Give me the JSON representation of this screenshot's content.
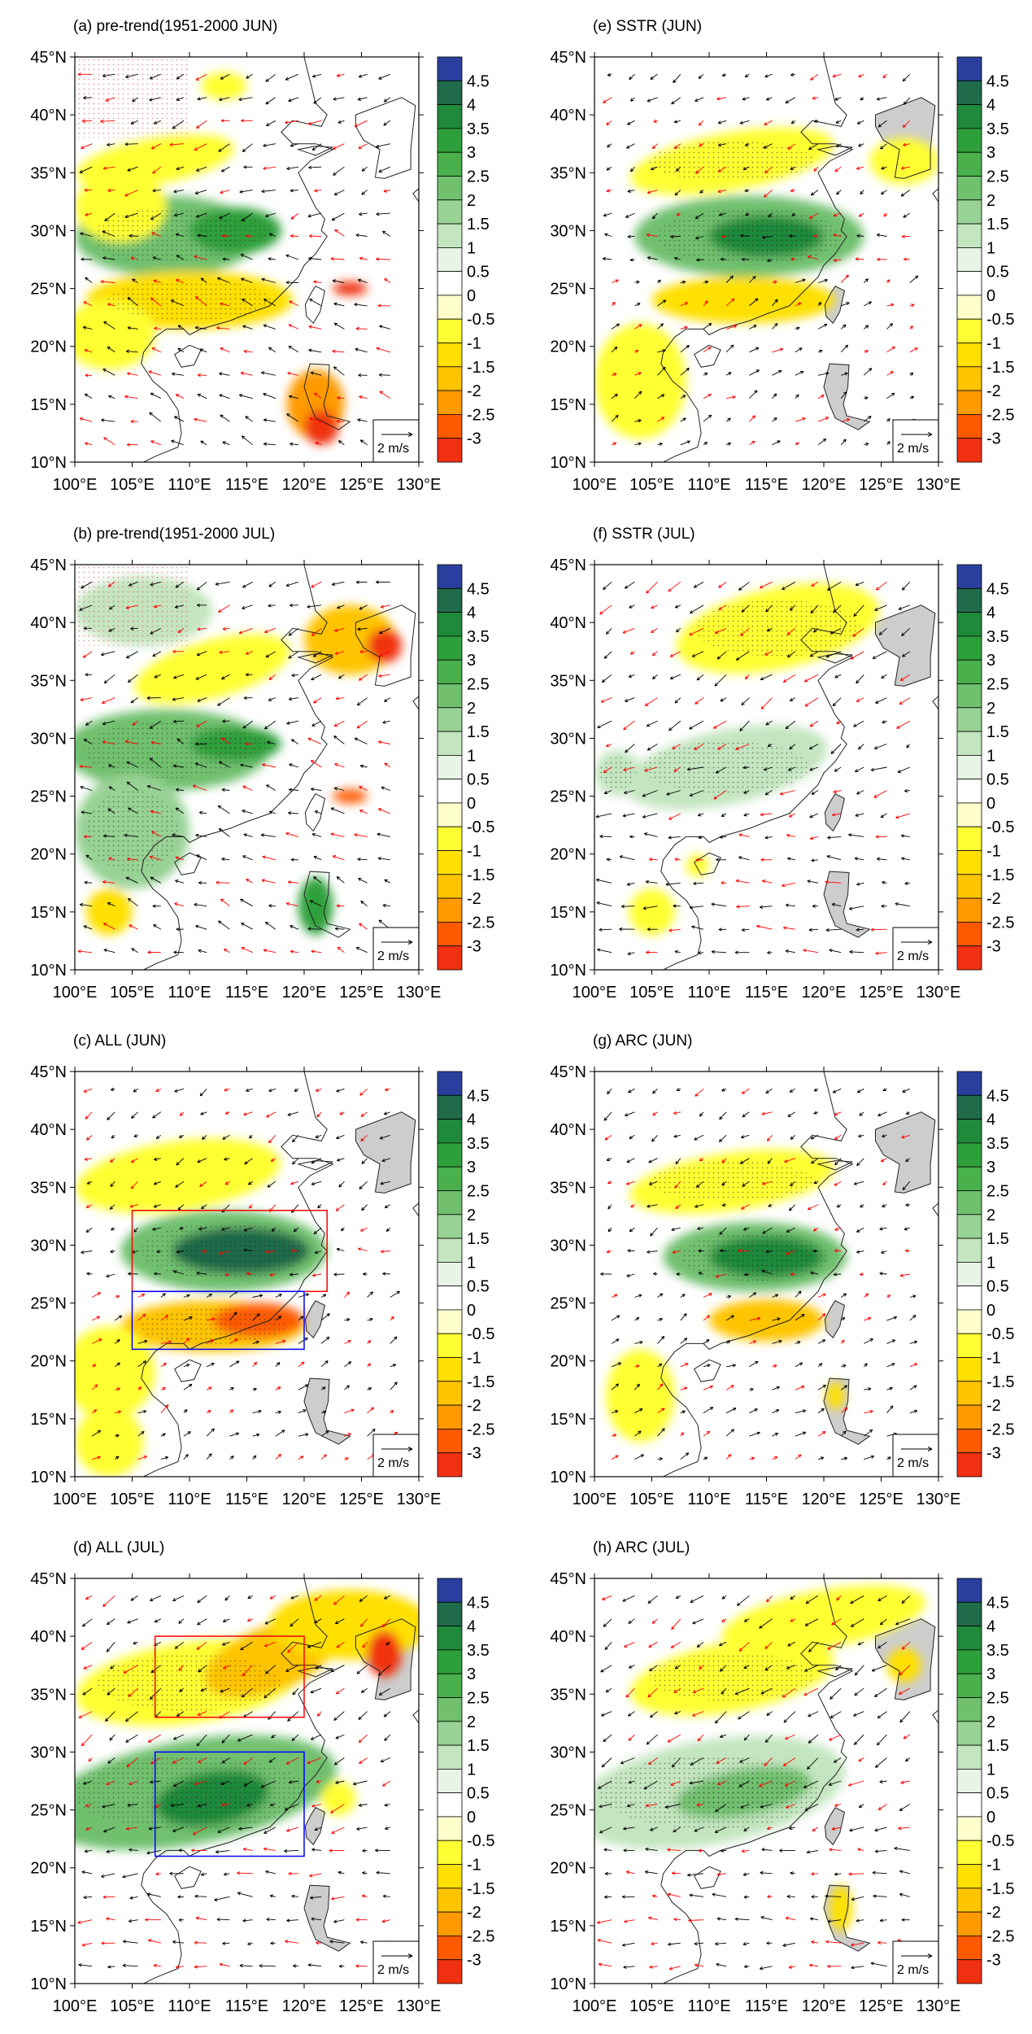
{
  "figure": {
    "reference_vector_label": "2 m/s",
    "lon_ticks": [
      "100°E",
      "105°E",
      "110°E",
      "115°E",
      "120°E",
      "125°E",
      "130°E"
    ],
    "lat_ticks": [
      "10°N",
      "15°N",
      "20°N",
      "25°N",
      "30°N",
      "35°N",
      "40°N",
      "45°N"
    ],
    "lon_range": [
      100,
      130
    ],
    "lat_range": [
      10,
      45
    ],
    "colorbar_labels": [
      "4.5",
      "4",
      "3.5",
      "3",
      "2.5",
      "2",
      "1.5",
      "1",
      "0.5",
      "0",
      "-0.5",
      "-1",
      "-1.5",
      "-2",
      "-2.5",
      "-3"
    ],
    "colorbar_colors": [
      "#2a3f9d",
      "#1f6b4a",
      "#1f8a3a",
      "#2ea03b",
      "#49b04b",
      "#70c06e",
      "#98d294",
      "#c3e5bf",
      "#e8f5e6",
      "#ffffff",
      "#ffffcc",
      "#ffff33",
      "#ffe000",
      "#ffc400",
      "#ff9a00",
      "#ff5a00",
      "#f03010"
    ],
    "vector_colors": {
      "significant": "#ff0000",
      "normal": "#000000"
    },
    "land_shading_color": "#c8c8c8"
  },
  "panels": [
    {
      "id": "a",
      "title": "(a) pre-trend(1951-2000 JUN)",
      "column": 0,
      "row": 0
    },
    {
      "id": "b",
      "title": "(b) pre-trend(1951-2000 JUL)",
      "column": 0,
      "row": 1
    },
    {
      "id": "c",
      "title": "(c) ALL (JUN)",
      "column": 0,
      "row": 2
    },
    {
      "id": "d",
      "title": "(d) ALL (JUL)",
      "column": 0,
      "row": 3
    },
    {
      "id": "e",
      "title": "(e) SSTR (JUN)",
      "column": 1,
      "row": 0
    },
    {
      "id": "f",
      "title": "(f) SSTR (JUL)",
      "column": 1,
      "row": 1
    },
    {
      "id": "g",
      "title": "(g) ARC (JUN)",
      "column": 1,
      "row": 2
    },
    {
      "id": "h",
      "title": "(h) ARC (JUL)",
      "column": 1,
      "row": 3
    }
  ],
  "boxes": [
    {
      "panel": "c",
      "color": "#ff0000",
      "lon": [
        105,
        122
      ],
      "lat": [
        26,
        33
      ]
    },
    {
      "panel": "c",
      "color": "#0000ff",
      "lon": [
        105,
        120
      ],
      "lat": [
        21,
        26
      ]
    },
    {
      "panel": "d",
      "color": "#ff0000",
      "lon": [
        107,
        120
      ],
      "lat": [
        33,
        40
      ]
    },
    {
      "panel": "d",
      "color": "#0000ff",
      "lon": [
        107,
        120
      ],
      "lat": [
        21,
        30
      ]
    }
  ]
}
